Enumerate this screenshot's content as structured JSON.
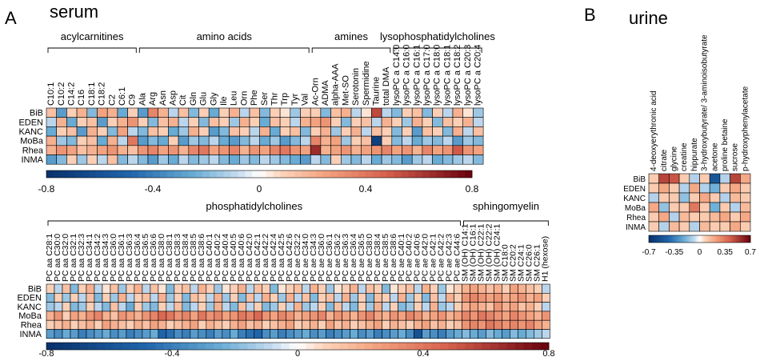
{
  "panels": [
    {
      "letter": "A",
      "title": "serum"
    },
    {
      "letter": "B",
      "title": "urine"
    }
  ],
  "cohorts": [
    "BiB",
    "EDEN",
    "KANC",
    "MoBa",
    "Rhea",
    "INMA"
  ],
  "colors": {
    "negative": "#08306b",
    "zero": "#ffffff",
    "positive": "#67000d",
    "grid": "#000000"
  },
  "chart_data": [
    {
      "type": "heatmap",
      "name": "serum-top",
      "rows": [
        "BiB",
        "EDEN",
        "KANC",
        "MoBa",
        "Rhea",
        "INMA"
      ],
      "group_labels": [
        "acylcarnitines",
        "amino acids",
        "amines",
        "lysophosphatidylcholines"
      ],
      "groups": [
        {
          "label": "acylcarnitines",
          "columns": [
            "C10:1",
            "C10:2",
            "C14:2",
            "C16",
            "C18:1",
            "C18:2",
            "C2",
            "C6:1",
            "C9"
          ]
        },
        {
          "label": "amino acids",
          "columns": [
            "Ala",
            "Arg",
            "Asn",
            "Asp",
            "Cit",
            "Gln",
            "Glu",
            "Gly",
            "Ile",
            "Leu",
            "Orn",
            "Phe",
            "Ser",
            "Thr",
            "Trp",
            "Tyr",
            "Val"
          ]
        },
        {
          "label": "amines",
          "columns": [
            "Ac-Orn",
            "ADMA",
            "alpha-AAA",
            "Met-SO",
            "Serotonin",
            "Spermidine",
            "Taurine",
            "total DMA"
          ]
        },
        {
          "label": "lysophosphatidylcholines",
          "columns": [
            "lysoPC a C14:0",
            "lysoPC a C16:0",
            "lysoPC a C16:1",
            "lysoPC a C17:0",
            "lysoPC a C18:0",
            "lysoPC a C18:1",
            "lysoPC a C18:2",
            "lysoPC a C20:3",
            "lysoPC a C20:4"
          ]
        }
      ],
      "values": [
        [
          0.15,
          -0.3,
          0.1,
          0.2,
          -0.2,
          0.25,
          0.2,
          -0.25,
          0.1,
          -0.3,
          0.35,
          0.2,
          -0.1,
          0.15,
          -0.2,
          0.1,
          -0.25,
          0.1,
          0.2,
          -0.1,
          0.15,
          -0.2,
          0.1,
          0.05,
          -0.15,
          0.1,
          0.1,
          -0.2,
          0.15,
          0.2,
          -0.1,
          0.05,
          0.55,
          -0.1,
          -0.2,
          0.1,
          0.15,
          -0.2,
          0.1,
          -0.1,
          0.2,
          0.05,
          -0.15
        ],
        [
          -0.1,
          0.2,
          -0.25,
          0.1,
          0.15,
          -0.3,
          0.1,
          0.2,
          0.3,
          0.1,
          -0.2,
          0.15,
          0.2,
          -0.1,
          0.1,
          -0.2,
          0.15,
          0.1,
          -0.15,
          0.2,
          0.1,
          -0.25,
          0.15,
          0.1,
          -0.1,
          0.2,
          0.25,
          0.3,
          0.1,
          -0.2,
          0.1,
          0.15,
          -0.1,
          0.2,
          0.1,
          -0.15,
          0.2,
          0.1,
          -0.2,
          0.15,
          0.1,
          0.2,
          -0.1
        ],
        [
          -0.25,
          0.1,
          0.15,
          -0.3,
          0.2,
          0.1,
          -0.2,
          0.25,
          -0.1,
          -0.2,
          0.15,
          0.1,
          -0.25,
          -0.15,
          0.2,
          0.1,
          -0.3,
          -0.2,
          0.15,
          0.1,
          -0.1,
          0.2,
          -0.25,
          0.1,
          0.15,
          -0.2,
          0.1,
          0.2,
          -0.15,
          0.1,
          0.2,
          -0.1,
          0.15,
          0.1,
          -0.2,
          0.1,
          -0.3,
          0.15,
          0.1,
          -0.2,
          0.2,
          -0.1,
          0.15
        ],
        [
          0.2,
          -0.15,
          -0.2,
          0.1,
          0.15,
          -0.25,
          0.2,
          -0.1,
          0.4,
          -0.3,
          -0.2,
          -0.25,
          0.1,
          -0.3,
          -0.15,
          -0.2,
          -0.1,
          -0.25,
          -0.3,
          -0.2,
          -0.1,
          -0.25,
          -0.15,
          -0.3,
          -0.2,
          -0.1,
          0.35,
          0.2,
          0.25,
          -0.15,
          0.1,
          0.15,
          -0.7,
          0.1,
          -0.2,
          -0.1,
          -0.25,
          -0.15,
          -0.2,
          -0.1,
          -0.3,
          -0.15,
          -0.2
        ],
        [
          0.2,
          0.3,
          0.25,
          0.15,
          0.2,
          0.25,
          0.3,
          0.2,
          0.15,
          0.3,
          0.35,
          0.25,
          0.3,
          0.2,
          0.35,
          0.4,
          0.25,
          0.3,
          0.35,
          0.2,
          0.3,
          0.25,
          0.35,
          0.4,
          0.3,
          0.25,
          0.65,
          0.2,
          0.25,
          0.3,
          0.2,
          0.25,
          0.3,
          0.35,
          0.25,
          0.3,
          0.2,
          0.35,
          0.25,
          0.3,
          0.5,
          0.3,
          0.25
        ],
        [
          -0.3,
          -0.2,
          0.1,
          -0.15,
          0.1,
          -0.1,
          0.15,
          -0.2,
          -0.1,
          -0.2,
          -0.3,
          -0.15,
          -0.25,
          -0.1,
          -0.2,
          -0.15,
          -0.1,
          -0.2,
          -0.25,
          -0.15,
          -0.2,
          -0.1,
          -0.15,
          -0.2,
          -0.25,
          -0.3,
          -0.1,
          -0.2,
          0.1,
          -0.15,
          -0.2,
          -0.1,
          -0.25,
          -0.15,
          -0.2,
          -0.3,
          -0.15,
          -0.1,
          -0.25,
          -0.2,
          -0.15,
          -0.1,
          -0.2
        ]
      ],
      "colorbar": {
        "min": -0.8,
        "max": 0.8,
        "ticks": [
          -0.8,
          -0.4,
          0,
          0.4,
          0.8
        ],
        "tick_labels": [
          "-0.8",
          "-0.4",
          "0",
          "0.4",
          "0.8"
        ]
      }
    },
    {
      "type": "heatmap",
      "name": "serum-bottom",
      "rows": [
        "BiB",
        "EDEN",
        "KANC",
        "MoBa",
        "Rhea",
        "INMA"
      ],
      "group_labels": [
        "phosphatidylcholines",
        "sphingomyelin"
      ],
      "groups": [
        {
          "label": "phosphatidylcholines",
          "columns": [
            "PC aa C28:1",
            "PC aa C30:0",
            "PC aa C32:0",
            "PC aa C32:1",
            "PC aa C32:3",
            "PC aa C34:1",
            "PC aa C34:2",
            "PC aa C34:3",
            "PC aa C36:0",
            "PC aa C36:1",
            "PC aa C36:3",
            "PC aa C36:4",
            "PC aa C36:5",
            "PC aa C36:6",
            "PC aa C38:0",
            "PC aa C38:1",
            "PC aa C38:3",
            "PC aa C38:4",
            "PC aa C38:5",
            "PC aa C38:6",
            "PC aa C40:1",
            "PC aa C40:2",
            "PC aa C40:4",
            "PC aa C40:5",
            "PC aa C40:6",
            "PC aa C42:0",
            "PC aa C42:1",
            "PC aa C42:2",
            "PC aa C42:4",
            "PC aa C42:5",
            "PC aa C42:6",
            "PC ae C32:2",
            "PC ae C34:0",
            "PC ae C34:3",
            "PC ae C36:0",
            "PC ae C36:1",
            "PC ae C36:2",
            "PC ae C36:3",
            "PC ae C36:4",
            "PC ae C36:5",
            "PC ae C38:0",
            "PC ae C38:4",
            "PC ae C38:5",
            "PC ae C38:6",
            "PC ae C40:1",
            "PC ae C40:2",
            "PC ae C40:6",
            "PC ae C42:0",
            "PC ae C42:1",
            "PC ae C42:2",
            "PC ae C42:3",
            "PC ae C44:6"
          ]
        },
        {
          "label": "sphingomyelin",
          "columns": [
            "SM (OH) C14:1",
            "SM (OH) C16:1",
            "SM (OH) C22:1",
            "SM (OH) C22:2",
            "SM (OH) C24:1",
            "SM C18:0",
            "SM C20:2",
            "SM C24:1",
            "SM C26:0",
            "SM C26:1",
            "H1 (hexose)"
          ]
        }
      ],
      "values": [
        [
          0.1,
          -0.1,
          0.15,
          -0.2,
          0.1,
          0.2,
          -0.1,
          0.05,
          0.15,
          -0.15,
          0.1,
          0.2,
          -0.1,
          0.15,
          0.05,
          -0.2,
          0.1,
          0.15,
          -0.1,
          0.2,
          0.1,
          -0.15,
          0.05,
          0.1,
          0.2,
          -0.1,
          0.15,
          0.1,
          -0.2,
          0.05,
          0.1,
          0.15,
          -0.1,
          0.2,
          0.1,
          -0.15,
          0.05,
          0.1,
          0.2,
          -0.1,
          0.15,
          0.1,
          -0.2,
          0.05,
          0.1,
          0.15,
          -0.1,
          0.2,
          0.1,
          -0.15,
          0.05,
          0.1,
          0.2,
          0.25,
          0.2,
          0.15,
          0.2,
          0.1,
          0.25,
          0.2,
          0.15,
          0.1,
          -0.1
        ],
        [
          -0.2,
          0.1,
          -0.15,
          0.1,
          -0.1,
          0.15,
          -0.2,
          0.1,
          -0.15,
          0.2,
          -0.1,
          0.1,
          0.15,
          -0.1,
          0.2,
          -0.15,
          0.1,
          -0.2,
          0.15,
          0.1,
          -0.1,
          0.2,
          -0.15,
          0.1,
          -0.2,
          0.15,
          -0.1,
          0.2,
          0.1,
          -0.15,
          0.2,
          -0.1,
          0.15,
          -0.2,
          0.1,
          0.15,
          -0.1,
          0.2,
          -0.15,
          0.1,
          -0.2,
          0.15,
          0.1,
          -0.1,
          0.2,
          -0.15,
          0.1,
          -0.2,
          0.15,
          -0.1,
          0.2,
          0.1,
          0.3,
          0.35,
          0.3,
          0.25,
          0.3,
          0.2,
          0.25,
          0.3,
          0.2,
          0.25,
          0.1
        ],
        [
          -0.15,
          -0.1,
          0.1,
          -0.2,
          -0.15,
          0.1,
          -0.1,
          -0.2,
          0.15,
          -0.1,
          -0.25,
          0.1,
          -0.15,
          -0.2,
          0.1,
          -0.1,
          0.15,
          -0.2,
          -0.1,
          0.1,
          -0.15,
          0.2,
          -0.1,
          -0.2,
          0.15,
          -0.1,
          0.1,
          -0.2,
          -0.15,
          0.1,
          -0.1,
          0.2,
          -0.15,
          -0.1,
          0.1,
          -0.2,
          0.15,
          -0.1,
          -0.2,
          0.1,
          -0.15,
          0.2,
          -0.1,
          0.1,
          -0.2,
          -0.15,
          0.1,
          -0.1,
          0.2,
          -0.15,
          -0.1,
          0.1,
          0.2,
          0.25,
          0.2,
          0.15,
          0.3,
          0.2,
          0.25,
          0.15,
          0.2,
          0.1,
          -0.1
        ],
        [
          0.2,
          0.3,
          0.1,
          0.25,
          0.2,
          0.3,
          0.35,
          0.2,
          0.15,
          0.3,
          0.25,
          0.2,
          0.3,
          0.35,
          0.45,
          0.4,
          0.3,
          0.35,
          0.25,
          0.4,
          0.3,
          0.35,
          0.25,
          0.3,
          0.4,
          0.35,
          0.45,
          0.3,
          0.25,
          0.35,
          0.3,
          0.2,
          0.25,
          0.3,
          0.35,
          0.2,
          0.3,
          0.25,
          0.2,
          0.3,
          0.35,
          0.25,
          0.2,
          0.3,
          0.25,
          0.35,
          0.3,
          0.2,
          0.25,
          0.3,
          0.2,
          0.25,
          0.35,
          0.3,
          0.4,
          0.35,
          0.3,
          0.25,
          0.35,
          0.3,
          0.25,
          0.2,
          0.3
        ],
        [
          0.1,
          0.15,
          0.2,
          0.1,
          0.15,
          0.2,
          0.1,
          0.25,
          0.2,
          0.15,
          0.1,
          0.2,
          0.15,
          0.25,
          0.2,
          0.1,
          0.15,
          0.2,
          0.25,
          0.1,
          0.2,
          0.15,
          0.1,
          0.2,
          0.25,
          0.15,
          0.2,
          0.1,
          0.15,
          0.2,
          0.25,
          0.1,
          0.15,
          0.2,
          0.1,
          0.25,
          0.15,
          0.2,
          0.1,
          0.15,
          0.2,
          0.25,
          0.1,
          0.2,
          0.15,
          0.1,
          0.2,
          0.25,
          0.15,
          0.2,
          0.1,
          0.15,
          0.3,
          0.35,
          0.3,
          0.4,
          0.35,
          0.3,
          0.35,
          0.3,
          0.35,
          0.25,
          0.2
        ],
        [
          -0.3,
          -0.35,
          -0.25,
          -0.3,
          -0.4,
          -0.35,
          -0.3,
          -0.25,
          -0.35,
          -0.3,
          -0.4,
          -0.35,
          -0.3,
          -0.25,
          -0.5,
          -0.45,
          -0.35,
          -0.4,
          -0.3,
          -0.35,
          -0.4,
          -0.3,
          -0.35,
          -0.25,
          -0.4,
          -0.45,
          -0.5,
          -0.35,
          -0.3,
          -0.4,
          -0.35,
          -0.3,
          -0.25,
          -0.35,
          -0.3,
          -0.4,
          -0.35,
          -0.3,
          -0.25,
          -0.35,
          -0.3,
          -0.4,
          -0.35,
          -0.3,
          -0.25,
          -0.35,
          -0.6,
          -0.3,
          -0.35,
          -0.4,
          -0.3,
          -0.25,
          -0.2,
          -0.25,
          -0.3,
          -0.2,
          -0.25,
          -0.3,
          -0.2,
          -0.25,
          -0.2,
          -0.15,
          -0.1
        ]
      ],
      "colorbar": {
        "min": -0.8,
        "max": 0.8,
        "ticks": [
          -0.8,
          -0.4,
          0,
          0.4,
          0.8
        ],
        "tick_labels": [
          "-0.8",
          "-0.4",
          "0",
          "0.4",
          "0.8"
        ]
      }
    },
    {
      "type": "heatmap",
      "name": "urine",
      "rows": [
        "BiB",
        "EDEN",
        "KANC",
        "MoBa",
        "Rhea",
        "INMA"
      ],
      "group_labels": [],
      "groups": [
        {
          "label": "",
          "columns": [
            "4-deoxyerythronic acid",
            "citrate",
            "glycine",
            "creatine",
            "hippurate",
            "3-hydroxybutyrate/ 3-aminoisobutyrate",
            "acetone",
            "proline betaine",
            "sucrose",
            "p-hydroxyphenylacetate"
          ]
        }
      ],
      "values": [
        [
          0.1,
          0.5,
          0.45,
          0.1,
          -0.1,
          0.1,
          -0.5,
          -0.1,
          0.5,
          0.2
        ],
        [
          0.1,
          0.2,
          0.1,
          -0.1,
          0.2,
          -0.1,
          -0.2,
          0.1,
          0.2,
          0.1
        ],
        [
          -0.1,
          0.1,
          0.1,
          -0.15,
          0.1,
          0.2,
          0.1,
          -0.1,
          0.15,
          0.1
        ],
        [
          0.2,
          -0.15,
          0.1,
          0.1,
          0.35,
          0.1,
          -0.2,
          0.1,
          -0.1,
          0.15
        ],
        [
          0.1,
          0.2,
          -0.1,
          0.15,
          0.1,
          0.1,
          0.15,
          0.2,
          0.1,
          0.2
        ],
        [
          0.1,
          -0.1,
          0.15,
          0.1,
          -0.1,
          0.15,
          0.1,
          0.1,
          0.2,
          0.1
        ]
      ],
      "colorbar": {
        "min": -0.7,
        "max": 0.7,
        "ticks": [
          -0.7,
          -0.35,
          0,
          0.35,
          0.7
        ],
        "tick_labels": [
          "-0.7",
          "-0.35",
          "0",
          "0.35",
          "0.7"
        ]
      }
    }
  ]
}
